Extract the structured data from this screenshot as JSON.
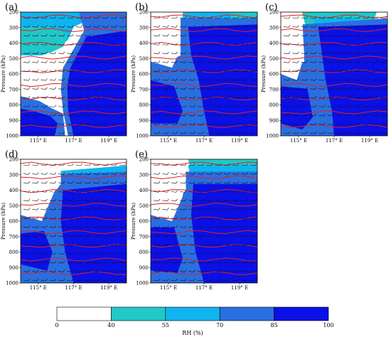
{
  "chart_data": [
    {
      "type": "heatmap",
      "panel": "(a)",
      "x_ticks": [
        "115° E",
        "117° E",
        "119° E"
      ],
      "xlim": [
        114,
        120
      ],
      "y_ticks": [
        "200",
        "300",
        "400",
        "500",
        "600",
        "700",
        "800",
        "900",
        "1000"
      ],
      "ylim": [
        1000,
        200
      ],
      "ylabel": "Pressure (hPa)",
      "boundary_85": [
        [
          114,
          200
        ],
        [
          117,
          200
        ],
        [
          117,
          260
        ],
        [
          116.2,
          280
        ],
        [
          116,
          350
        ],
        [
          116.1,
          450
        ],
        [
          115.9,
          520
        ],
        [
          115.8,
          600
        ],
        [
          115.4,
          680
        ],
        [
          115,
          720
        ],
        [
          114,
          700
        ]
      ],
      "note_levels": [
        40,
        55,
        70,
        85
      ]
    },
    {
      "type": "heatmap",
      "panel": "(b)",
      "x_ticks": [
        "115° E",
        "117° E",
        "119° E"
      ],
      "xlim": [
        114,
        120
      ],
      "y_ticks": [
        "200",
        "300",
        "400",
        "500",
        "600",
        "700",
        "800",
        "900",
        "1000"
      ],
      "ylim": [
        1000,
        200
      ],
      "ylabel": "Pressure (hPa)"
    },
    {
      "type": "heatmap",
      "panel": "(c)",
      "x_ticks": [
        "115° E",
        "117° E",
        "119° E"
      ],
      "xlim": [
        114,
        120
      ],
      "y_ticks": [
        "200",
        "300",
        "400",
        "500",
        "600",
        "700",
        "800",
        "900",
        "1000"
      ],
      "ylim": [
        1000,
        200
      ],
      "ylabel": "Pressure (hPa)"
    },
    {
      "type": "heatmap",
      "panel": "(d)",
      "x_ticks": [
        "115° E",
        "117° E",
        "119° E"
      ],
      "xlim": [
        114,
        120
      ],
      "y_ticks": [
        "200",
        "300",
        "400",
        "500",
        "600",
        "700",
        "800",
        "900",
        "1000"
      ],
      "ylim": [
        1000,
        200
      ],
      "ylabel": "Pressure (hPa)"
    },
    {
      "type": "heatmap",
      "panel": "(e)",
      "x_ticks": [
        "115° E",
        "117° E",
        "119° E"
      ],
      "xlim": [
        114,
        120
      ],
      "y_ticks": [
        "200",
        "300",
        "400",
        "500",
        "600",
        "700",
        "800",
        "900",
        "1000"
      ],
      "ylim": [
        1000,
        200
      ],
      "ylabel": "Pressure (hPa)"
    }
  ],
  "colorbar": {
    "label": "RH (%)",
    "ticks": [
      "0",
      "40",
      "55",
      "70",
      "85",
      "100"
    ],
    "colors": [
      "#ffffff",
      "#20c8c8",
      "#10b4ee",
      "#2a6fe0",
      "#0a10e6"
    ]
  },
  "palette": {
    "contour_red": "#e02020",
    "barb_black": "#111111",
    "frame": "#000000"
  }
}
